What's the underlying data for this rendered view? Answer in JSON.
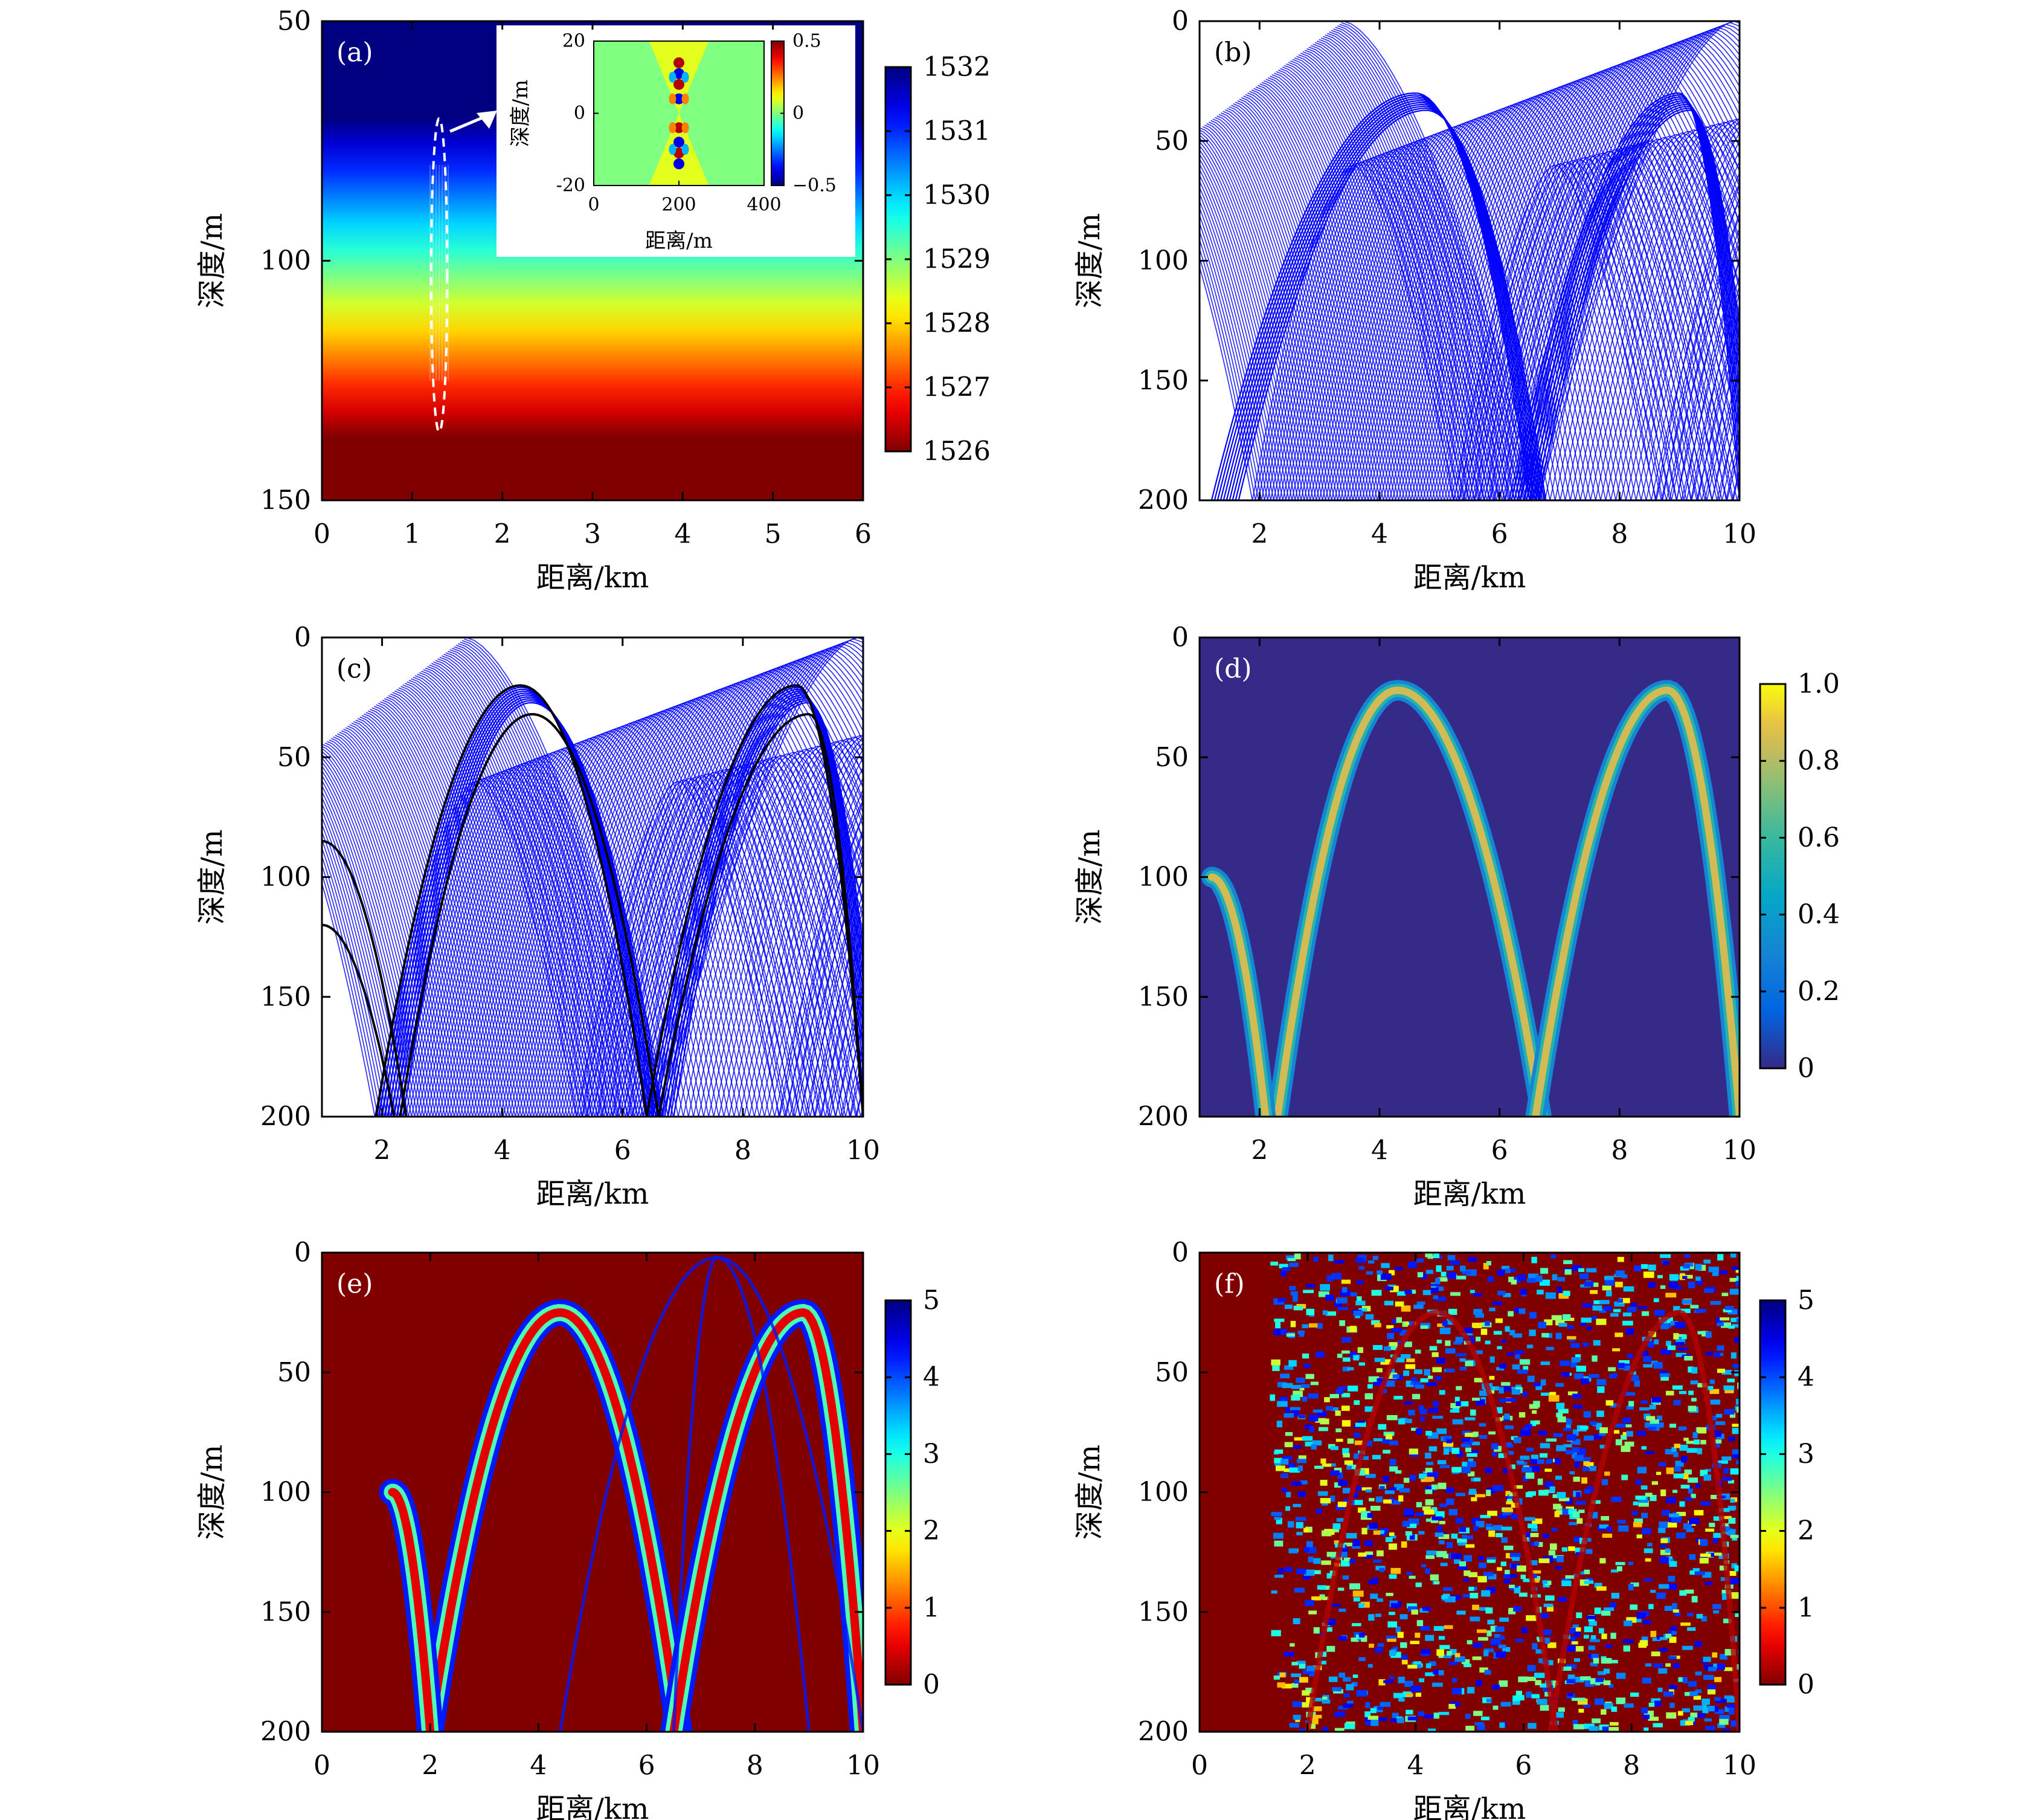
{
  "figure": {
    "panels": [
      {
        "id": "a",
        "label": "(a)",
        "type": "heatmap",
        "xlabel": "距离/km",
        "ylabel": "深度/m",
        "xlim": [
          0,
          6
        ],
        "ylim": [
          50,
          150
        ],
        "y_reversed": true,
        "xticks": [
          0,
          1,
          2,
          3,
          4,
          5,
          6
        ],
        "yticks": [
          50,
          100,
          150
        ],
        "colorbar": {
          "ticks": [
            1526,
            1527,
            1528,
            1529,
            1530,
            1531,
            1532
          ],
          "range": [
            1526,
            1532
          ],
          "colormap": "jet-reversed"
        },
        "profile": {
          "mixed_layer_value": 1532,
          "mixed_layer_bottom": 70,
          "thermocline_bottom": 137,
          "deep_value": 1526
        },
        "inset": {
          "xlabel": "距离/m",
          "ylabel": "深度/m",
          "xlim": [
            0,
            400
          ],
          "ylim": [
            -20,
            20
          ],
          "xticks": [
            0,
            200,
            400
          ],
          "yticks": [
            20,
            0,
            -20
          ],
          "colorbar": {
            "ticks": [
              0.5,
              0,
              -0.5
            ],
            "tick_labels": [
              "0.5",
              "0",
              "−0.5"
            ],
            "range": [
              -0.5,
              0.5
            ],
            "colormap": "jet"
          }
        },
        "annotation": {
          "ellipse_center": [
            1.3,
            103
          ],
          "ellipse_rx_km": 0.25,
          "ellipse_ry_m": 30
        }
      },
      {
        "id": "b",
        "label": "(b)",
        "type": "ray_trace",
        "xlabel": "距离/km",
        "ylabel": "深度/m",
        "xlim": [
          1,
          10
        ],
        "ylim": [
          0,
          200
        ],
        "y_reversed": true,
        "xticks": [
          2,
          4,
          6,
          8,
          10
        ],
        "yticks": [
          0,
          50,
          100,
          150,
          200
        ],
        "ray_color": "#0000ff",
        "convergence_arches": [
          {
            "x_start": 1.2,
            "x_peak": 4.6,
            "x_end": 6.5,
            "peak_depth": 30
          },
          {
            "x_start": 6.2,
            "x_peak": 9.0,
            "x_end": 10,
            "peak_depth": 30
          }
        ]
      },
      {
        "id": "c",
        "label": "(c)",
        "type": "ray_trace",
        "xlabel": "距离/km",
        "ylabel": "深度/m",
        "xlim": [
          1,
          10
        ],
        "ylim": [
          0,
          200
        ],
        "y_reversed": true,
        "xticks": [
          2,
          4,
          6,
          8,
          10
        ],
        "yticks": [
          0,
          50,
          100,
          150,
          200
        ],
        "ray_color": "#0000ff",
        "eigenray_color": "#000000",
        "eigenray_arches": [
          {
            "x_start": 1.9,
            "x_peak": 4.3,
            "x_end": 6.4,
            "peak_depth": 20
          },
          {
            "x_start": 6.4,
            "x_peak": 8.9,
            "x_end": 10,
            "peak_depth": 20
          },
          {
            "x_start": 2.3,
            "x_peak": 4.5,
            "x_end": 6.6,
            "peak_depth": 32
          },
          {
            "x_start": 6.6,
            "x_peak": 9.1,
            "x_end": 10,
            "peak_depth": 32
          }
        ]
      },
      {
        "id": "d",
        "label": "(d)",
        "type": "heatmap",
        "xlabel": "距离/km",
        "ylabel": "深度/m",
        "xlim": [
          1,
          10
        ],
        "ylim": [
          0,
          200
        ],
        "y_reversed": true,
        "xticks": [
          2,
          4,
          6,
          8,
          10
        ],
        "yticks": [
          0,
          50,
          100,
          150,
          200
        ],
        "colorbar": {
          "ticks": [
            0,
            0.2,
            0.4,
            0.6,
            0.8,
            1.0
          ],
          "tick_labels": [
            "0",
            "0.2",
            "0.4",
            "0.6",
            "0.8",
            "1.0"
          ],
          "range": [
            0,
            1
          ],
          "colormap": "parula"
        },
        "arches": [
          {
            "x_start": 2.3,
            "x_peak": 4.3,
            "x_end": 6.7,
            "peak_depth": 22
          },
          {
            "x_start": 6.6,
            "x_peak": 8.8,
            "x_end": 10,
            "peak_depth": 22
          },
          {
            "x_start": 1.2,
            "x_peak": 1.2,
            "x_end": 2.1,
            "peak_depth": 100
          }
        ]
      },
      {
        "id": "e",
        "label": "(e)",
        "type": "heatmap",
        "xlabel": "距离/km",
        "ylabel": "深度/m",
        "xlim": [
          0,
          10
        ],
        "ylim": [
          0,
          200
        ],
        "y_reversed": true,
        "xticks": [
          0,
          2,
          4,
          6,
          8,
          10
        ],
        "yticks": [
          0,
          50,
          100,
          150,
          200
        ],
        "colorbar": {
          "ticks": [
            0,
            1,
            2,
            3,
            4,
            5
          ],
          "range": [
            0,
            5
          ],
          "colormap": "jet-reversed"
        },
        "arches": [
          {
            "x_start": 2.0,
            "x_peak": 4.4,
            "x_end": 6.6,
            "peak_depth": 25
          },
          {
            "x_start": 6.5,
            "x_peak": 8.9,
            "x_end": 10,
            "peak_depth": 25
          },
          {
            "x_start": 1.3,
            "x_peak": 1.3,
            "x_end": 2.0,
            "peak_depth": 100
          }
        ]
      },
      {
        "id": "f",
        "label": "(f)",
        "type": "heatmap",
        "xlabel": "距离/km",
        "ylabel": "深度/m",
        "xlim": [
          0,
          10
        ],
        "ylim": [
          0,
          200
        ],
        "y_reversed": true,
        "xticks": [
          0,
          2,
          4,
          6,
          8,
          10
        ],
        "yticks": [
          0,
          50,
          100,
          150,
          200
        ],
        "colorbar": {
          "ticks": [
            0,
            1,
            2,
            3,
            4,
            5
          ],
          "range": [
            0,
            5
          ],
          "colormap": "jet-reversed"
        },
        "noise_start_km": 1.3,
        "arches": [
          {
            "x_start": 2.0,
            "x_peak": 4.4,
            "x_end": 6.6,
            "peak_depth": 25
          },
          {
            "x_start": 6.5,
            "x_peak": 8.9,
            "x_end": 10,
            "peak_depth": 25
          }
        ]
      }
    ]
  }
}
